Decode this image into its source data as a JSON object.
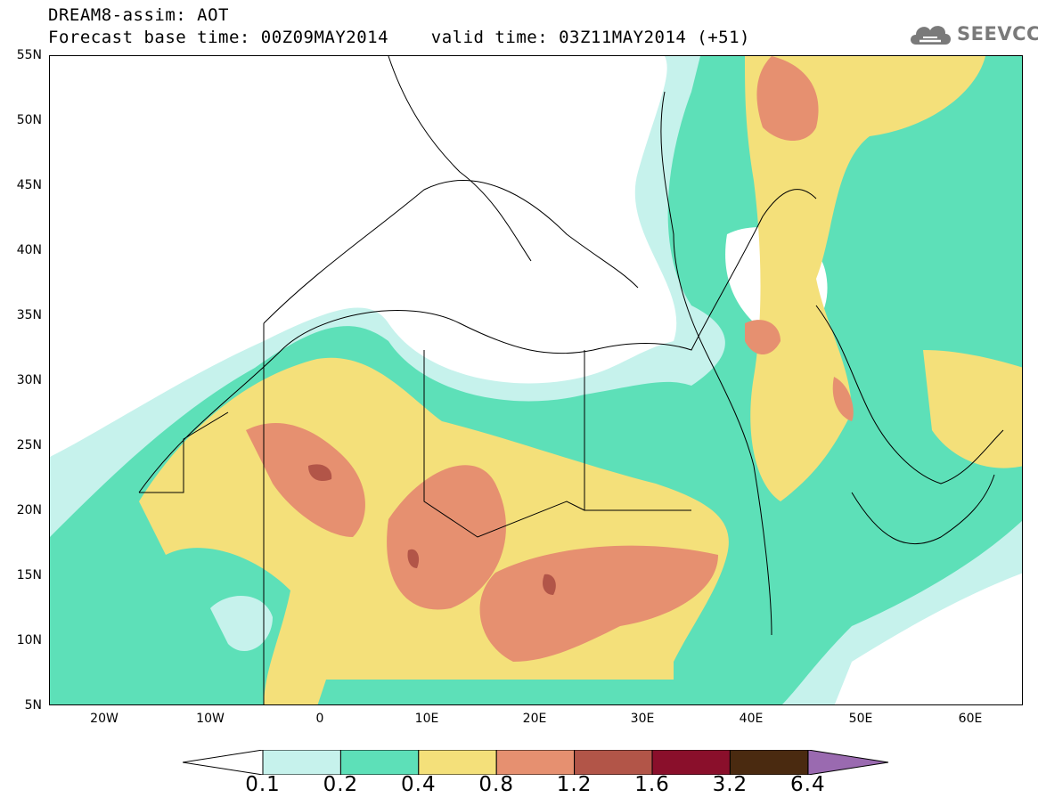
{
  "header": {
    "title_line_1": "DREAM8-assim: AOT",
    "title_line_2": "Forecast base time: 00Z09MAY2014    valid time: 03Z11MAY2014 (+51)"
  },
  "logo": {
    "text": "SEEVCCC",
    "icon": "cloud-icon"
  },
  "map": {
    "region": "Northern Africa, Mediterranean, Middle East",
    "lat_labels": [
      "55N",
      "50N",
      "45N",
      "40N",
      "35N",
      "30N",
      "25N",
      "20N",
      "15N",
      "10N",
      "5N"
    ],
    "lon_labels": [
      "20W",
      "10W",
      "0",
      "10E",
      "20E",
      "30E",
      "40E",
      "50E",
      "60E"
    ]
  },
  "legend": {
    "labels": [
      "0.1",
      "0.2",
      "0.4",
      "0.8",
      "1.2",
      "1.6",
      "3.2",
      "6.4"
    ],
    "colors": [
      "#c6f2ec",
      "#5de0b8",
      "#f4e07a",
      "#e69070",
      "#b25548",
      "#8a0f2b",
      "#4a2a10",
      "#9a6ab0"
    ]
  }
}
